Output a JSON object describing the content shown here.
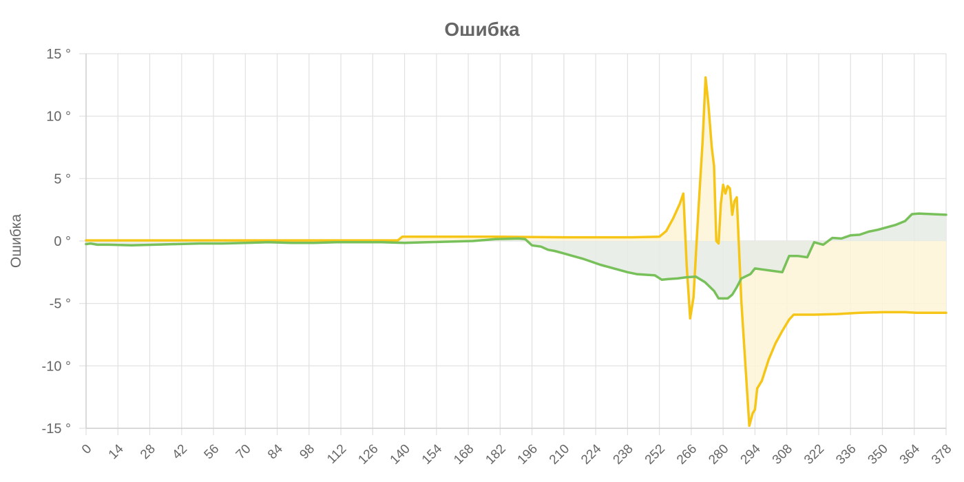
{
  "chart_data": {
    "type": "line",
    "title": "Ошибка",
    "xlabel": "",
    "ylabel": "Ошибка",
    "xlim": [
      0,
      378
    ],
    "ylim": [
      -15,
      15
    ],
    "x_ticks": [
      "0",
      "14",
      "28",
      "42",
      "56",
      "70",
      "84",
      "98",
      "112",
      "126",
      "140",
      "154",
      "168",
      "182",
      "196",
      "210",
      "224",
      "238",
      "252",
      "266",
      "280",
      "294",
      "308",
      "322",
      "336",
      "350",
      "364",
      "378"
    ],
    "y_ticks": [
      "15 °",
      "10 °",
      "5 °",
      "0 °",
      "-5 °",
      "-10 °",
      "-15 °"
    ],
    "y_tick_values": [
      15,
      10,
      5,
      0,
      -5,
      -10,
      -15
    ],
    "grid": true,
    "legend": "none",
    "colors": {
      "yellow": "#f5c518",
      "green": "#77c05a",
      "yellow_fill": "#fdf4d6",
      "green_fill": "#e6ebe4",
      "text": "#666666"
    },
    "series": [
      {
        "color": "#f5c518",
        "fill_to_zero": true,
        "points": [
          [
            0,
            0.05
          ],
          [
            40,
            0.05
          ],
          [
            80,
            0.05
          ],
          [
            120,
            0.05
          ],
          [
            137,
            0.05
          ],
          [
            139,
            0.35
          ],
          [
            180,
            0.35
          ],
          [
            210,
            0.3
          ],
          [
            240,
            0.3
          ],
          [
            252,
            0.35
          ],
          [
            255,
            0.8
          ],
          [
            258,
            1.8
          ],
          [
            261,
            3.0
          ],
          [
            262.5,
            3.8
          ],
          [
            264,
            -2
          ],
          [
            265.5,
            -6.2
          ],
          [
            267,
            -4.5
          ],
          [
            269,
            2
          ],
          [
            271,
            8
          ],
          [
            272.3,
            13.1
          ],
          [
            273.5,
            11
          ],
          [
            275,
            7.5
          ],
          [
            276,
            6
          ],
          [
            277,
            0
          ],
          [
            278,
            -0.2
          ],
          [
            279,
            3
          ],
          [
            280,
            4.5
          ],
          [
            281,
            3.8
          ],
          [
            282,
            4.4
          ],
          [
            283,
            4.2
          ],
          [
            284,
            2.1
          ],
          [
            285,
            3.2
          ],
          [
            286,
            3.5
          ],
          [
            288,
            -4.8
          ],
          [
            290,
            -10.5
          ],
          [
            291.5,
            -14.8
          ],
          [
            293,
            -13.8
          ],
          [
            294,
            -13.5
          ],
          [
            295,
            -11.8
          ],
          [
            297,
            -11.2
          ],
          [
            300,
            -9.5
          ],
          [
            303,
            -8.2
          ],
          [
            306,
            -7.2
          ],
          [
            309,
            -6.3
          ],
          [
            311,
            -5.9
          ],
          [
            320,
            -5.9
          ],
          [
            330,
            -5.85
          ],
          [
            340,
            -5.75
          ],
          [
            350,
            -5.7
          ],
          [
            360,
            -5.7
          ],
          [
            365,
            -5.75
          ],
          [
            378,
            -5.75
          ]
        ]
      },
      {
        "color": "#77c05a",
        "fill_to_zero": true,
        "points": [
          [
            0,
            -0.25
          ],
          [
            2,
            -0.2
          ],
          [
            5,
            -0.3
          ],
          [
            10,
            -0.3
          ],
          [
            20,
            -0.35
          ],
          [
            30,
            -0.3
          ],
          [
            40,
            -0.25
          ],
          [
            50,
            -0.2
          ],
          [
            60,
            -0.2
          ],
          [
            70,
            -0.15
          ],
          [
            80,
            -0.1
          ],
          [
            90,
            -0.15
          ],
          [
            100,
            -0.15
          ],
          [
            110,
            -0.1
          ],
          [
            120,
            -0.1
          ],
          [
            130,
            -0.1
          ],
          [
            140,
            -0.15
          ],
          [
            150,
            -0.1
          ],
          [
            160,
            -0.05
          ],
          [
            170,
            0
          ],
          [
            180,
            0.15
          ],
          [
            190,
            0.2
          ],
          [
            193,
            0.15
          ],
          [
            196,
            -0.35
          ],
          [
            200,
            -0.45
          ],
          [
            203,
            -0.7
          ],
          [
            206,
            -0.8
          ],
          [
            210,
            -1.0
          ],
          [
            214,
            -1.2
          ],
          [
            218,
            -1.4
          ],
          [
            222,
            -1.65
          ],
          [
            226,
            -1.9
          ],
          [
            230,
            -2.1
          ],
          [
            234,
            -2.3
          ],
          [
            238,
            -2.5
          ],
          [
            242,
            -2.65
          ],
          [
            246,
            -2.7
          ],
          [
            250,
            -2.75
          ],
          [
            253,
            -3.1
          ],
          [
            256,
            -3.05
          ],
          [
            260,
            -3.0
          ],
          [
            264,
            -2.9
          ],
          [
            268,
            -2.85
          ],
          [
            272,
            -3.3
          ],
          [
            276,
            -4.0
          ],
          [
            278,
            -4.6
          ],
          [
            282,
            -4.6
          ],
          [
            284,
            -4.3
          ],
          [
            286,
            -3.7
          ],
          [
            288,
            -3.0
          ],
          [
            292,
            -2.65
          ],
          [
            294,
            -2.2
          ],
          [
            298,
            -2.3
          ],
          [
            302,
            -2.4
          ],
          [
            306,
            -2.5
          ],
          [
            309,
            -1.2
          ],
          [
            313,
            -1.2
          ],
          [
            317,
            -1.3
          ],
          [
            320,
            -0.1
          ],
          [
            324,
            -0.3
          ],
          [
            328,
            0.25
          ],
          [
            332,
            0.2
          ],
          [
            336,
            0.45
          ],
          [
            340,
            0.5
          ],
          [
            344,
            0.75
          ],
          [
            348,
            0.9
          ],
          [
            352,
            1.1
          ],
          [
            356,
            1.3
          ],
          [
            360,
            1.6
          ],
          [
            363,
            2.15
          ],
          [
            366,
            2.2
          ],
          [
            372,
            2.15
          ],
          [
            378,
            2.1
          ]
        ]
      }
    ]
  }
}
